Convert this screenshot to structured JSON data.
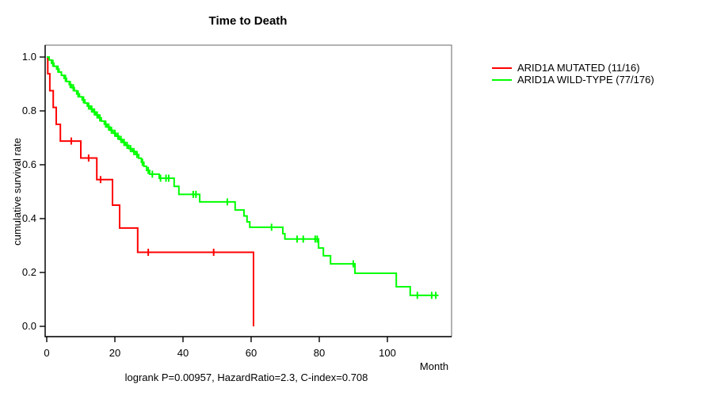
{
  "title": "Time to Death",
  "caption": "logrank P=0.00957, HazardRatio=2.3, C-index=0.708",
  "axes": {
    "x": {
      "label": "Month",
      "ticks": [
        0,
        20,
        40,
        60,
        80,
        100
      ]
    },
    "y": {
      "label": "cumulative survival rate",
      "ticks": [
        "0.0",
        "0.2",
        "0.4",
        "0.6",
        "0.8",
        "1.0"
      ]
    }
  },
  "legend": {
    "items": [
      {
        "label": "ARID1A MUTATED (11/16)",
        "color": "#ff0000"
      },
      {
        "label": "ARID1A WILD-TYPE (77/176)",
        "color": "#00ff00"
      }
    ]
  },
  "chart_data": {
    "type": "line",
    "subtype": "kaplan-meier-step",
    "title": "Time to Death",
    "xlabel": "Month",
    "ylabel": "cumulative survival rate",
    "xlim": [
      0,
      119
    ],
    "ylim": [
      0.0,
      1.0
    ],
    "grid": false,
    "legend_position": "right",
    "series": [
      {
        "name": "ARID1A MUTATED (11/16)",
        "color": "#ff0000",
        "events": 11,
        "total": 16,
        "points": [
          [
            0,
            1.0
          ],
          [
            0.3,
            0.938
          ],
          [
            0.9,
            0.875
          ],
          [
            1.9,
            0.813
          ],
          [
            2.8,
            0.75
          ],
          [
            4.0,
            0.688
          ],
          [
            10.0,
            0.625
          ],
          [
            14.7,
            0.545
          ],
          [
            19.3,
            0.45
          ],
          [
            21.4,
            0.365
          ],
          [
            26.7,
            0.275
          ],
          [
            60.7,
            0.0
          ]
        ],
        "censors": [
          [
            7.2,
            0.688
          ],
          [
            12.3,
            0.625
          ],
          [
            15.8,
            0.545
          ],
          [
            29.8,
            0.275
          ],
          [
            49.0,
            0.275
          ]
        ]
      },
      {
        "name": "ARID1A WILD-TYPE (77/176)",
        "color": "#00ff00",
        "events": 77,
        "total": 176,
        "points": [
          [
            0,
            1.0
          ],
          [
            0.7,
            0.989
          ],
          [
            1.4,
            0.977
          ],
          [
            2.1,
            0.966
          ],
          [
            2.9,
            0.955
          ],
          [
            3.6,
            0.944
          ],
          [
            4.3,
            0.932
          ],
          [
            5.1,
            0.921
          ],
          [
            5.8,
            0.909
          ],
          [
            6.6,
            0.898
          ],
          [
            7.3,
            0.886
          ],
          [
            8.1,
            0.875
          ],
          [
            8.8,
            0.863
          ],
          [
            9.6,
            0.852
          ],
          [
            10.4,
            0.841
          ],
          [
            11.2,
            0.829
          ],
          [
            11.9,
            0.818
          ],
          [
            12.8,
            0.807
          ],
          [
            13.6,
            0.796
          ],
          [
            14.4,
            0.785
          ],
          [
            15.2,
            0.774
          ],
          [
            16.0,
            0.762
          ],
          [
            16.9,
            0.751
          ],
          [
            17.7,
            0.74
          ],
          [
            18.6,
            0.728
          ],
          [
            19.5,
            0.717
          ],
          [
            20.4,
            0.706
          ],
          [
            21.3,
            0.694
          ],
          [
            22.2,
            0.683
          ],
          [
            23.1,
            0.672
          ],
          [
            24.1,
            0.66
          ],
          [
            25.1,
            0.649
          ],
          [
            26.1,
            0.638
          ],
          [
            27.0,
            0.624
          ],
          [
            27.8,
            0.609
          ],
          [
            28.5,
            0.594
          ],
          [
            29.3,
            0.579
          ],
          [
            30.2,
            0.565
          ],
          [
            33.0,
            0.55
          ],
          [
            37.4,
            0.52
          ],
          [
            38.8,
            0.49
          ],
          [
            44.9,
            0.462
          ],
          [
            55.3,
            0.432
          ],
          [
            57.9,
            0.41
          ],
          [
            58.8,
            0.388
          ],
          [
            59.6,
            0.368
          ],
          [
            69.3,
            0.344
          ],
          [
            69.9,
            0.324
          ],
          [
            79.8,
            0.291
          ],
          [
            81.2,
            0.262
          ],
          [
            83.3,
            0.232
          ],
          [
            90.5,
            0.197
          ],
          [
            102.6,
            0.147
          ],
          [
            106.7,
            0.115
          ],
          [
            115.0,
            0.115
          ]
        ],
        "censors": [
          [
            1.8,
            0.977
          ],
          [
            3.3,
            0.955
          ],
          [
            5.5,
            0.921
          ],
          [
            6.9,
            0.898
          ],
          [
            7.8,
            0.886
          ],
          [
            9.2,
            0.863
          ],
          [
            10.8,
            0.841
          ],
          [
            12.3,
            0.818
          ],
          [
            13.2,
            0.807
          ],
          [
            14.0,
            0.796
          ],
          [
            14.8,
            0.785
          ],
          [
            15.6,
            0.774
          ],
          [
            17.3,
            0.751
          ],
          [
            18.2,
            0.74
          ],
          [
            19.0,
            0.728
          ],
          [
            20.0,
            0.717
          ],
          [
            20.9,
            0.706
          ],
          [
            21.8,
            0.694
          ],
          [
            22.7,
            0.683
          ],
          [
            23.6,
            0.672
          ],
          [
            24.6,
            0.66
          ],
          [
            25.6,
            0.649
          ],
          [
            26.5,
            0.638
          ],
          [
            28.1,
            0.609
          ],
          [
            29.8,
            0.579
          ],
          [
            31.0,
            0.565
          ],
          [
            33.4,
            0.55
          ],
          [
            35.0,
            0.55
          ],
          [
            35.8,
            0.55
          ],
          [
            43.0,
            0.49
          ],
          [
            43.8,
            0.49
          ],
          [
            53.0,
            0.462
          ],
          [
            66.0,
            0.368
          ],
          [
            73.5,
            0.324
          ],
          [
            75.3,
            0.324
          ],
          [
            78.8,
            0.324
          ],
          [
            79.4,
            0.324
          ],
          [
            90.0,
            0.232
          ],
          [
            108.8,
            0.115
          ],
          [
            113.0,
            0.115
          ],
          [
            114.2,
            0.115
          ]
        ]
      }
    ]
  }
}
